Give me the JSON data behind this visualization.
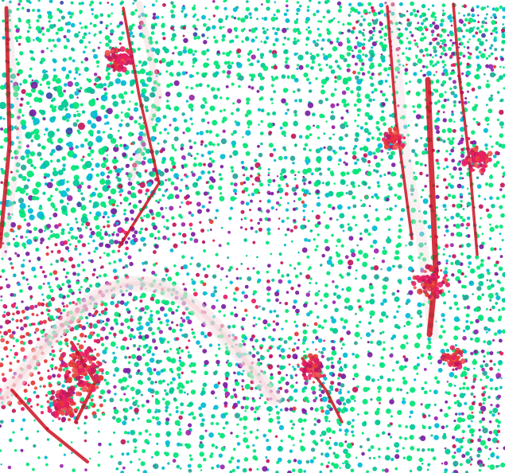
{
  "fig_width": 6.35,
  "fig_height": 5.94,
  "dpi": 100,
  "background_color": "#ffffff",
  "colors": {
    "c1": "#00e676",
    "c2": "#00c896",
    "c3": "#00bcd4",
    "c4": "#26a69a",
    "c5": "#7b1fa2",
    "c6": "#9c27b0",
    "c7": "#c2185b",
    "c8": "#e91e63",
    "c9": "#e53935",
    "c10": "#ef5350",
    "c11": "#3949ab",
    "c12": "#1565c0"
  },
  "seed": 7
}
